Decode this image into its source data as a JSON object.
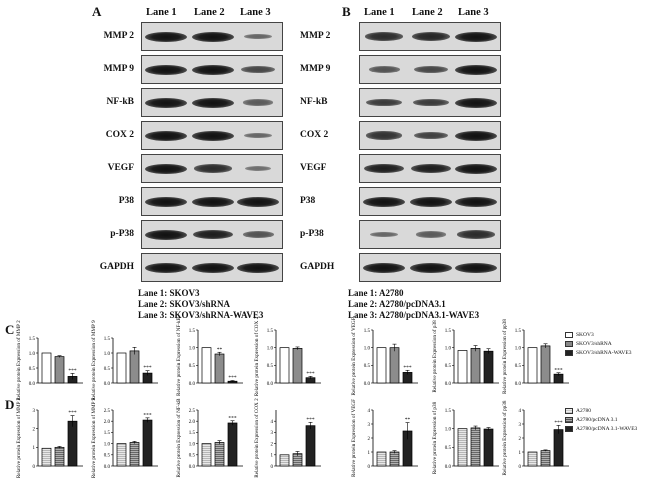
{
  "panelA": {
    "letter": "A",
    "lanes": [
      "Lane 1",
      "Lane 2",
      "Lane 3"
    ],
    "rows": [
      "MMP 2",
      "MMP 9",
      "NF-kB",
      "COX 2",
      "VEGF",
      "P38",
      "p-P38",
      "GAPDH"
    ],
    "legend": [
      "Lane 1: SKOV3",
      "Lane 2: SKOV3/shRNA",
      "Lane 3: SKOV3/shRNA-WAVE3"
    ],
    "band_intensity": [
      [
        1,
        1,
        0.35
      ],
      [
        1,
        1,
        0.6
      ],
      [
        1,
        1,
        0.45
      ],
      [
        1,
        1,
        0.35
      ],
      [
        1,
        0.8,
        0.3
      ],
      [
        1,
        1,
        1
      ],
      [
        1,
        0.9,
        0.5
      ],
      [
        1,
        1,
        1
      ]
    ]
  },
  "panelB": {
    "letter": "B",
    "lanes": [
      "Lane 1",
      "Lane 2",
      "Lane 3"
    ],
    "rows": [
      "MMP 2",
      "MMP 9",
      "NF-kB",
      "COX 2",
      "VEGF",
      "P38",
      "p-P38",
      "GAPDH"
    ],
    "legend": [
      "Lane 1: A2780",
      "Lane 2: A2780/pcDNA3.1",
      "Lane 3: A2780/pcDNA3.1-WAVE3"
    ],
    "band_intensity": [
      [
        0.8,
        0.85,
        1
      ],
      [
        0.5,
        0.6,
        1
      ],
      [
        0.7,
        0.7,
        1
      ],
      [
        0.75,
        0.65,
        1
      ],
      [
        0.9,
        0.9,
        1
      ],
      [
        1,
        1,
        1
      ],
      [
        0.35,
        0.45,
        0.8
      ],
      [
        1,
        1,
        1
      ]
    ]
  },
  "panelC": {
    "letter": "C",
    "legend": [
      "SKOV3",
      "SKOV3/shRNA",
      "SKOV3/shRNA-WAVE3"
    ]
  },
  "panelD": {
    "letter": "D",
    "legend": [
      "A2780",
      "A2780/pcDNA 3.1",
      "A2780/pcDNA 3.1-WAVE3"
    ]
  },
  "chart_data": [
    {
      "type": "bar",
      "panel": "C",
      "ylabel": "Relative protein Expression of MMP 2",
      "yticks": [
        "0.0",
        "0.5",
        "1.0",
        "1.5"
      ],
      "ylim": [
        0,
        1.5
      ],
      "categories": [
        "SKOV3",
        "SKOV3/shRNA",
        "SKOV3/shRNA-WAVE3"
      ],
      "values": [
        1.0,
        0.88,
        0.22
      ],
      "errors": [
        0,
        0.03,
        0.1
      ],
      "annotations": [
        "",
        "",
        "***"
      ]
    },
    {
      "type": "bar",
      "panel": "C",
      "ylabel": "Relative protein Expression of MMP 9",
      "yticks": [
        "0.0",
        "0.5",
        "1.0",
        "1.5"
      ],
      "ylim": [
        0,
        1.5
      ],
      "categories": [
        "SKOV3",
        "SKOV3/shRNA",
        "SKOV3/shRNA-WAVE3"
      ],
      "values": [
        1.0,
        1.07,
        0.33
      ],
      "errors": [
        0,
        0.12,
        0.08
      ],
      "annotations": [
        "",
        "",
        "***"
      ]
    },
    {
      "type": "bar",
      "panel": "C",
      "ylabel": "Relative protein Expression of NF-kB",
      "yticks": [
        "0.0",
        "0.5",
        "1.0",
        "1.5"
      ],
      "ylim": [
        0,
        1.5
      ],
      "categories": [
        "SKOV3",
        "SKOV3/shRNA",
        "SKOV3/shRNA-WAVE3"
      ],
      "values": [
        1.0,
        0.82,
        0.05
      ],
      "errors": [
        0,
        0.05,
        0.02
      ],
      "annotations": [
        "",
        "**",
        "***"
      ]
    },
    {
      "type": "bar",
      "panel": "C",
      "ylabel": "Relative protein Expression of COX 2",
      "yticks": [
        "0.0",
        "0.5",
        "1.0",
        "1.5"
      ],
      "ylim": [
        0,
        1.5
      ],
      "categories": [
        "SKOV3",
        "SKOV3/shRNA",
        "SKOV3/shRNA-WAVE3"
      ],
      "values": [
        1.0,
        0.98,
        0.15
      ],
      "errors": [
        0,
        0.04,
        0.04
      ],
      "annotations": [
        "",
        "",
        "***"
      ]
    },
    {
      "type": "bar",
      "panel": "C",
      "ylabel": "Relative protein Expression of VEGF",
      "yticks": [
        "0.0",
        "0.5",
        "1.0",
        "1.5"
      ],
      "ylim": [
        0,
        1.5
      ],
      "categories": [
        "SKOV3",
        "SKOV3/shRNA",
        "SKOV3/shRNA-WAVE3"
      ],
      "values": [
        1.0,
        1.0,
        0.3
      ],
      "errors": [
        0,
        0.1,
        0.06
      ],
      "annotations": [
        "",
        "",
        "***"
      ]
    },
    {
      "type": "bar",
      "panel": "C",
      "ylabel": "Relative protein Expression of p38",
      "yticks": [
        "0.0",
        "0.5",
        "1.0",
        "1.5"
      ],
      "ylim": [
        0,
        1.5
      ],
      "categories": [
        "SKOV3",
        "SKOV3/shRNA",
        "SKOV3/shRNA-WAVE3"
      ],
      "values": [
        0.92,
        0.98,
        0.9
      ],
      "errors": [
        0,
        0.08,
        0.07
      ],
      "annotations": [
        "",
        "",
        ""
      ]
    },
    {
      "type": "bar",
      "panel": "C",
      "ylabel": "Relative protein Expression of pp38",
      "yticks": [
        "0.0",
        "0.5",
        "1.0",
        "1.5"
      ],
      "ylim": [
        0,
        1.5
      ],
      "categories": [
        "SKOV3",
        "SKOV3/shRNA",
        "SKOV3/shRNA-WAVE3"
      ],
      "values": [
        1.0,
        1.05,
        0.25
      ],
      "errors": [
        0,
        0.06,
        0.04
      ],
      "annotations": [
        "",
        "",
        "***"
      ]
    },
    {
      "type": "bar",
      "panel": "D",
      "ylabel": "Relative protein Expression of MMP 2",
      "yticks": [
        "0",
        "1",
        "2",
        "3"
      ],
      "ylim": [
        0,
        3
      ],
      "categories": [
        "A2780",
        "A2780/pcDNA 3.1",
        "A2780/pcDNA 3.1-WAVE3"
      ],
      "values": [
        0.95,
        1.0,
        2.4
      ],
      "errors": [
        0,
        0.05,
        0.3
      ],
      "annotations": [
        "",
        "",
        "***"
      ]
    },
    {
      "type": "bar",
      "panel": "D",
      "ylabel": "Relative protein Expression of MMP 9",
      "yticks": [
        "0.0",
        "0.5",
        "1.0",
        "1.5",
        "2.0",
        "2.5"
      ],
      "ylim": [
        0,
        2.5
      ],
      "categories": [
        "A2780",
        "A2780/pcDNA 3.1",
        "A2780/pcDNA 3.1-WAVE3"
      ],
      "values": [
        1.0,
        1.05,
        2.05
      ],
      "errors": [
        0,
        0.05,
        0.1
      ],
      "annotations": [
        "",
        "",
        "***"
      ]
    },
    {
      "type": "bar",
      "panel": "D",
      "ylabel": "Relative protein Expression of NF-kB",
      "yticks": [
        "0.0",
        "0.5",
        "1.0",
        "1.5",
        "2.0",
        "2.5"
      ],
      "ylim": [
        0,
        2.5
      ],
      "categories": [
        "A2780",
        "A2780/pcDNA 3.1",
        "A2780/pcDNA 3.1-WAVE3"
      ],
      "values": [
        1.0,
        1.05,
        1.92
      ],
      "errors": [
        0,
        0.08,
        0.1
      ],
      "annotations": [
        "",
        "",
        "***"
      ]
    },
    {
      "type": "bar",
      "panel": "D",
      "ylabel": "Relative protein Expression of COX 2",
      "yticks": [
        "0",
        "1",
        "2",
        "3",
        "4"
      ],
      "ylim": [
        0,
        5
      ],
      "categories": [
        "A2780",
        "A2780/pcDNA 3.1",
        "A2780/pcDNA 3.1-WAVE3"
      ],
      "values": [
        1.0,
        1.1,
        3.6
      ],
      "errors": [
        0,
        0.2,
        0.3
      ],
      "annotations": [
        "",
        "",
        "***"
      ]
    },
    {
      "type": "bar",
      "panel": "D",
      "ylabel": "Relative protein Expression of VEGF",
      "yticks": [
        "0",
        "1",
        "2",
        "3",
        "4"
      ],
      "ylim": [
        0,
        4
      ],
      "categories": [
        "A2780",
        "A2780/pcDNA 3.1",
        "A2780/pcDNA 3.1-WAVE3"
      ],
      "values": [
        1.0,
        1.0,
        2.5
      ],
      "errors": [
        0,
        0.1,
        0.6
      ],
      "annotations": [
        "",
        "",
        "**"
      ]
    },
    {
      "type": "bar",
      "panel": "D",
      "ylabel": "Relative protein Expression of p38",
      "yticks": [
        "0.0",
        "0.5",
        "1.0",
        "1.5"
      ],
      "ylim": [
        0,
        1.5
      ],
      "categories": [
        "A2780",
        "A2780/pcDNA 3.1",
        "A2780/pcDNA 3.1-WAVE3"
      ],
      "values": [
        1.0,
        1.02,
        0.99
      ],
      "errors": [
        0,
        0.05,
        0.04
      ],
      "annotations": [
        "",
        "",
        ""
      ]
    },
    {
      "type": "bar",
      "panel": "D",
      "ylabel": "Relative protein Expression of pp38",
      "yticks": [
        "0",
        "1",
        "2",
        "3",
        "4"
      ],
      "ylim": [
        0,
        4
      ],
      "categories": [
        "A2780",
        "A2780/pcDNA 3.1",
        "A2780/pcDNA 3.1-WAVE3"
      ],
      "values": [
        1.0,
        1.1,
        2.6
      ],
      "errors": [
        0,
        0.05,
        0.3
      ],
      "annotations": [
        "",
        "",
        "***"
      ]
    }
  ]
}
